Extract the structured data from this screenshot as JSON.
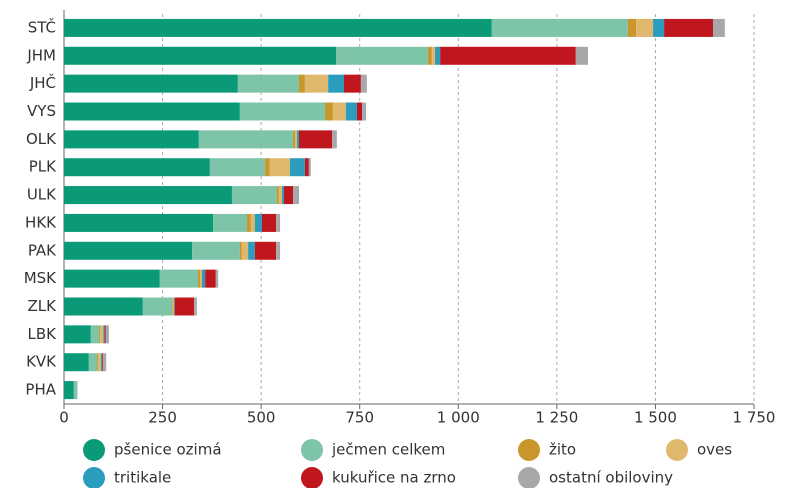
{
  "chart_data": {
    "type": "stacked-barh",
    "categories": [
      "STČ",
      "JHM",
      "JHČ",
      "VYS",
      "OLK",
      "PLK",
      "ULK",
      "HKK",
      "PAK",
      "MSK",
      "ZLK",
      "LBK",
      "KVK",
      "PHA"
    ],
    "series": [
      {
        "name": "pšenice ozimá",
        "color": "#0a9a77",
        "values": [
          1085,
          690,
          441,
          446,
          342,
          370,
          426,
          378,
          325,
          243,
          200,
          68,
          63,
          25
        ]
      },
      {
        "name": "ječmen celkem",
        "color": "#7ec4a8",
        "values": [
          345,
          233,
          155,
          216,
          239,
          140,
          114,
          86,
          121,
          97,
          74,
          21,
          21,
          8
        ]
      },
      {
        "name": "žito",
        "color": "#c9962b",
        "values": [
          21,
          10,
          15,
          20,
          5,
          12,
          5,
          10,
          5,
          5,
          2,
          3,
          3,
          0
        ]
      },
      {
        "name": "oves",
        "color": "#dfb86e",
        "values": [
          43,
          8,
          59,
          33,
          5,
          51,
          8,
          10,
          16,
          5,
          3,
          8,
          7,
          0
        ]
      },
      {
        "name": "tritikale",
        "color": "#2a9dbf",
        "values": [
          28,
          13,
          40,
          28,
          5,
          38,
          5,
          18,
          17,
          8,
          2,
          3,
          3,
          0
        ]
      },
      {
        "name": "kukuřice na zrno",
        "color": "#c0171f",
        "values": [
          124,
          344,
          43,
          13,
          84,
          10,
          23,
          36,
          54,
          27,
          49,
          3,
          2,
          0
        ]
      },
      {
        "name": "ostatní obiloviny",
        "color": "#a8a8ab",
        "values": [
          30,
          31,
          15,
          10,
          12,
          5,
          15,
          10,
          10,
          6,
          7,
          8,
          8,
          1
        ]
      }
    ],
    "xlim": [
      0,
      1750
    ],
    "xticks": [
      0,
      250,
      500,
      750,
      {
        "value": 1000,
        "label": "1 000"
      },
      {
        "value": 1250,
        "label": "1 250"
      },
      {
        "value": 1500,
        "label": "1 500"
      },
      {
        "value": 1750,
        "label": "1 750"
      }
    ],
    "grid": true
  }
}
